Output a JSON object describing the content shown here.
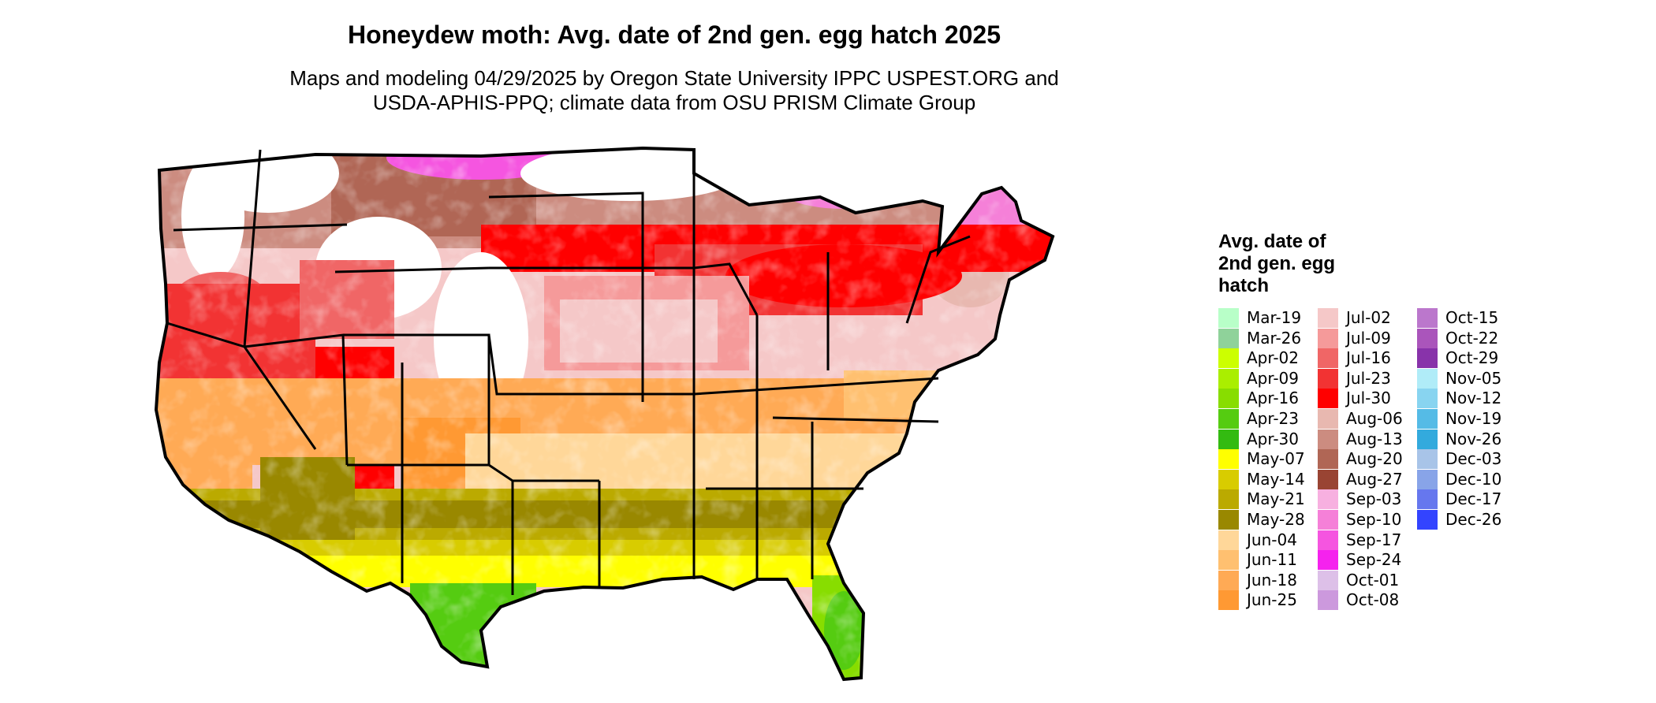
{
  "title": "Honeydew moth: Avg. date of 2nd gen. egg hatch 2025",
  "subtitle_line1": "Maps and modeling 04/29/2025 by Oregon State University IPPC USPEST.ORG and",
  "subtitle_line2": "USDA-APHIS-PPQ; climate data from OSU PRISM Climate Group",
  "legend": {
    "title_lines": [
      "Avg. date of",
      "2nd gen. egg",
      "hatch"
    ],
    "columns": [
      [
        {
          "label": "Mar-19",
          "color": "#b8ffc8"
        },
        {
          "label": "Mar-26",
          "color": "#8fd29a"
        },
        {
          "label": "Apr-02",
          "color": "#ccff00"
        },
        {
          "label": "Apr-09",
          "color": "#aaee00"
        },
        {
          "label": "Apr-16",
          "color": "#88dd00"
        },
        {
          "label": "Apr-23",
          "color": "#55cc11"
        },
        {
          "label": "Apr-30",
          "color": "#33bb11"
        },
        {
          "label": "May-07",
          "color": "#ffff00"
        },
        {
          "label": "May-14",
          "color": "#d8cc00"
        },
        {
          "label": "May-21",
          "color": "#bbaa00"
        },
        {
          "label": "May-28",
          "color": "#998800"
        },
        {
          "label": "Jun-04",
          "color": "#ffd799"
        },
        {
          "label": "Jun-11",
          "color": "#ffc070"
        },
        {
          "label": "Jun-18",
          "color": "#ffaa55"
        },
        {
          "label": "Jun-25",
          "color": "#ff9933"
        }
      ],
      [
        {
          "label": "Jul-02",
          "color": "#f5c8c8"
        },
        {
          "label": "Jul-09",
          "color": "#f59a9a"
        },
        {
          "label": "Jul-16",
          "color": "#f06666"
        },
        {
          "label": "Jul-23",
          "color": "#f23333"
        },
        {
          "label": "Jul-30",
          "color": "#ff0000"
        },
        {
          "label": "Aug-06",
          "color": "#e8b8b0"
        },
        {
          "label": "Aug-13",
          "color": "#cc8c80"
        },
        {
          "label": "Aug-20",
          "color": "#b06655"
        },
        {
          "label": "Aug-27",
          "color": "#994433"
        },
        {
          "label": "Sep-03",
          "color": "#f7b0e0"
        },
        {
          "label": "Sep-10",
          "color": "#f580d8"
        },
        {
          "label": "Sep-17",
          "color": "#f555e0"
        },
        {
          "label": "Sep-24",
          "color": "#f522ee"
        },
        {
          "label": "Oct-01",
          "color": "#ddc0e8"
        },
        {
          "label": "Oct-08",
          "color": "#cc99dd"
        }
      ],
      [
        {
          "label": "Oct-15",
          "color": "#bb77cc"
        },
        {
          "label": "Oct-22",
          "color": "#aa55bb"
        },
        {
          "label": "Oct-29",
          "color": "#8833aa"
        },
        {
          "label": "Nov-05",
          "color": "#b0ecf8"
        },
        {
          "label": "Nov-12",
          "color": "#88d4f0"
        },
        {
          "label": "Nov-19",
          "color": "#55bbe6"
        },
        {
          "label": "Nov-26",
          "color": "#33aadd"
        },
        {
          "label": "Dec-03",
          "color": "#a8c4e8"
        },
        {
          "label": "Dec-10",
          "color": "#88a4e8"
        },
        {
          "label": "Dec-17",
          "color": "#6677ee"
        },
        {
          "label": "Dec-26",
          "color": "#3344ff"
        }
      ]
    ]
  }
}
